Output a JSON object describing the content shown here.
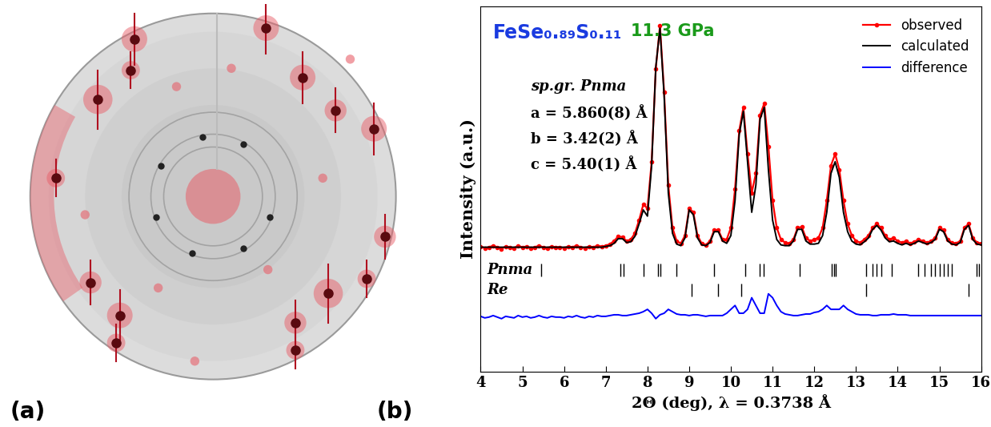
{
  "panel_a": {
    "label": "(a)"
  },
  "chart_data": {
    "type": "line",
    "panel_label": "(b)",
    "x_label": "2Θ (deg), λ = 0.3738 Å",
    "y_label": "Intensity (a.u.)",
    "annotations": [
      {
        "text": "FeSe₀.₈₉S₀.₁₁",
        "color": "#1a3be0"
      },
      {
        "text": "11.3 GPa",
        "color": "#1a9a1a"
      },
      {
        "text": "sp.gr. Pnma",
        "color": "#000000"
      },
      {
        "text": "a = 5.860(8) Å",
        "color": "#000000"
      },
      {
        "text": "b = 3.42(2) Å",
        "color": "#000000"
      },
      {
        "text": "c = 5.40(1) Å",
        "color": "#000000"
      }
    ],
    "x": [
      4.0,
      4.1,
      4.2,
      4.3,
      4.4,
      4.5,
      4.6,
      4.7,
      4.8,
      4.9,
      5.0,
      5.1,
      5.2,
      5.3,
      5.4,
      5.5,
      5.6,
      5.7,
      5.8,
      5.9,
      6.0,
      6.1,
      6.2,
      6.3,
      6.4,
      6.5,
      6.6,
      6.7,
      6.8,
      6.9,
      7.0,
      7.1,
      7.2,
      7.3,
      7.4,
      7.5,
      7.6,
      7.7,
      7.8,
      7.9,
      8.0,
      8.1,
      8.2,
      8.3,
      8.4,
      8.5,
      8.6,
      8.7,
      8.8,
      8.9,
      9.0,
      9.1,
      9.2,
      9.3,
      9.4,
      9.5,
      9.6,
      9.7,
      9.8,
      9.9,
      10.0,
      10.1,
      10.2,
      10.3,
      10.4,
      10.5,
      10.6,
      10.7,
      10.8,
      10.9,
      11.0,
      11.1,
      11.2,
      11.3,
      11.4,
      11.5,
      11.6,
      11.7,
      11.8,
      11.9,
      12.0,
      12.1,
      12.2,
      12.3,
      12.4,
      12.5,
      12.6,
      12.7,
      12.8,
      12.9,
      13.0,
      13.1,
      13.2,
      13.3,
      13.4,
      13.5,
      13.6,
      13.7,
      13.8,
      13.9,
      14.0,
      14.1,
      14.2,
      14.3,
      14.4,
      14.5,
      14.6,
      14.7,
      14.8,
      14.9,
      15.0,
      15.1,
      15.2,
      15.3,
      15.4,
      15.5,
      15.6,
      15.7,
      15.8,
      15.9,
      16.0
    ],
    "series": [
      {
        "name": "observed",
        "color": "#ff0000",
        "marker": "o",
        "line_style": "solid",
        "values": [
          1.61,
          1.59,
          1.6,
          1.62,
          1.6,
          1.58,
          1.61,
          1.6,
          1.59,
          1.62,
          1.6,
          1.61,
          1.59,
          1.6,
          1.62,
          1.6,
          1.59,
          1.61,
          1.6,
          1.6,
          1.59,
          1.61,
          1.6,
          1.62,
          1.6,
          1.59,
          1.61,
          1.6,
          1.62,
          1.61,
          1.62,
          1.64,
          1.68,
          1.74,
          1.73,
          1.68,
          1.7,
          1.78,
          1.95,
          2.15,
          2.1,
          2.7,
          3.9,
          4.45,
          3.6,
          2.4,
          1.85,
          1.68,
          1.65,
          1.75,
          2.1,
          2.05,
          1.75,
          1.65,
          1.63,
          1.68,
          1.82,
          1.82,
          1.7,
          1.7,
          1.85,
          2.35,
          3.1,
          3.4,
          2.8,
          2.3,
          2.55,
          3.3,
          3.45,
          2.9,
          2.2,
          1.85,
          1.7,
          1.66,
          1.65,
          1.7,
          1.85,
          1.86,
          1.72,
          1.68,
          1.7,
          1.72,
          1.85,
          2.2,
          2.65,
          2.8,
          2.6,
          2.2,
          1.9,
          1.75,
          1.68,
          1.66,
          1.7,
          1.75,
          1.85,
          1.9,
          1.85,
          1.75,
          1.7,
          1.72,
          1.68,
          1.66,
          1.68,
          1.65,
          1.67,
          1.7,
          1.68,
          1.66,
          1.68,
          1.72,
          1.85,
          1.82,
          1.7,
          1.66,
          1.65,
          1.68,
          1.85,
          1.9,
          1.72,
          1.66,
          1.65
        ]
      },
      {
        "name": "calculated",
        "color": "#000000",
        "marker": "none",
        "line_style": "solid",
        "values": [
          1.6,
          1.6,
          1.6,
          1.6,
          1.6,
          1.6,
          1.6,
          1.6,
          1.6,
          1.6,
          1.6,
          1.6,
          1.6,
          1.6,
          1.6,
          1.6,
          1.6,
          1.6,
          1.6,
          1.6,
          1.6,
          1.6,
          1.6,
          1.6,
          1.6,
          1.6,
          1.6,
          1.6,
          1.6,
          1.6,
          1.61,
          1.62,
          1.65,
          1.71,
          1.71,
          1.66,
          1.67,
          1.74,
          1.9,
          2.08,
          2.0,
          2.65,
          3.92,
          4.42,
          3.55,
          2.3,
          1.78,
          1.64,
          1.62,
          1.72,
          2.08,
          2.02,
          1.72,
          1.63,
          1.62,
          1.66,
          1.8,
          1.8,
          1.68,
          1.65,
          1.75,
          2.2,
          3.05,
          3.35,
          2.7,
          2.05,
          2.4,
          3.25,
          3.4,
          2.6,
          1.95,
          1.7,
          1.63,
          1.62,
          1.62,
          1.68,
          1.83,
          1.83,
          1.68,
          1.64,
          1.64,
          1.65,
          1.75,
          2.05,
          2.55,
          2.7,
          2.5,
          2.05,
          1.8,
          1.68,
          1.64,
          1.63,
          1.67,
          1.72,
          1.83,
          1.88,
          1.82,
          1.72,
          1.67,
          1.68,
          1.65,
          1.63,
          1.65,
          1.63,
          1.65,
          1.68,
          1.66,
          1.64,
          1.66,
          1.7,
          1.83,
          1.8,
          1.68,
          1.64,
          1.63,
          1.66,
          1.83,
          1.88,
          1.7,
          1.64,
          1.63
        ]
      },
      {
        "name": "difference",
        "color": "#0000ff",
        "marker": "none",
        "line_style": "solid",
        "values": [
          0.71,
          0.69,
          0.7,
          0.72,
          0.7,
          0.68,
          0.71,
          0.7,
          0.69,
          0.72,
          0.7,
          0.71,
          0.69,
          0.7,
          0.72,
          0.7,
          0.69,
          0.71,
          0.7,
          0.7,
          0.69,
          0.71,
          0.7,
          0.72,
          0.7,
          0.69,
          0.71,
          0.7,
          0.72,
          0.71,
          0.71,
          0.72,
          0.73,
          0.73,
          0.72,
          0.72,
          0.73,
          0.74,
          0.75,
          0.77,
          0.8,
          0.75,
          0.68,
          0.73,
          0.75,
          0.8,
          0.77,
          0.74,
          0.73,
          0.73,
          0.72,
          0.73,
          0.73,
          0.72,
          0.71,
          0.72,
          0.72,
          0.72,
          0.72,
          0.75,
          0.8,
          0.85,
          0.75,
          0.75,
          0.8,
          0.95,
          0.85,
          0.75,
          0.75,
          1.0,
          0.95,
          0.85,
          0.77,
          0.74,
          0.73,
          0.72,
          0.72,
          0.73,
          0.74,
          0.74,
          0.76,
          0.77,
          0.8,
          0.85,
          0.8,
          0.8,
          0.8,
          0.85,
          0.8,
          0.77,
          0.74,
          0.73,
          0.73,
          0.73,
          0.72,
          0.72,
          0.73,
          0.73,
          0.73,
          0.74,
          0.73,
          0.73,
          0.73,
          0.72,
          0.72,
          0.72,
          0.72,
          0.72,
          0.72,
          0.72,
          0.72,
          0.72,
          0.72,
          0.72,
          0.72,
          0.72,
          0.72,
          0.72,
          0.72,
          0.72,
          0.72
        ]
      }
    ],
    "reflections": [
      {
        "name": "Pnma",
        "color": "#000000",
        "positions": [
          5.45,
          7.35,
          7.42,
          7.9,
          8.25,
          8.32,
          8.7,
          9.6,
          10.35,
          10.7,
          10.78,
          11.65,
          12.42,
          12.47,
          12.52,
          13.25,
          13.4,
          13.5,
          13.6,
          13.85,
          14.5,
          14.65,
          14.8,
          14.9,
          15.0,
          15.1,
          15.2,
          15.3,
          15.9,
          15.95
        ]
      },
      {
        "name": "Re",
        "color": "#000000",
        "positions": [
          9.05,
          9.7,
          10.25,
          13.25,
          15.7
        ]
      }
    ],
    "xlim": [
      4,
      16
    ],
    "xticks": [
      4,
      5,
      6,
      7,
      8,
      9,
      10,
      11,
      12,
      13,
      14,
      15,
      16
    ],
    "ylim": [
      0,
      4.7
    ],
    "yticks": [],
    "tick_labels": "x",
    "legend": "upper right",
    "grid": false
  }
}
